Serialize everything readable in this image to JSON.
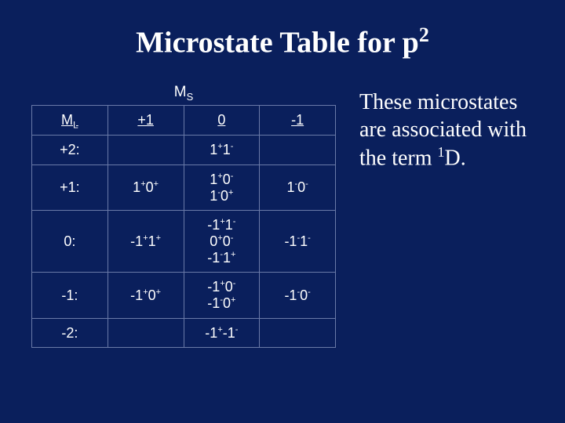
{
  "colors": {
    "background": "#0a1f5c",
    "text": "#ffffff",
    "border": "#6a7aa8"
  },
  "fonts": {
    "title_family": "Times New Roman",
    "title_size_pt": 38,
    "body_family": "Arial",
    "body_size_pt": 18,
    "sidetext_family": "Times New Roman",
    "sidetext_size_pt": 28
  },
  "title": {
    "prefix": "Microstate Table  for p",
    "sup": "2"
  },
  "ms_header": {
    "base": "M",
    "sub": "S"
  },
  "ml_header": {
    "base": "M",
    "sub": "L"
  },
  "col_headers": {
    "c1": "+1",
    "c2": "0",
    "c3": "-1"
  },
  "rows": {
    "r1": {
      "ml": "+2:",
      "c1": "",
      "c2": [
        {
          "base": "1",
          "sup": "+"
        },
        {
          "base": "1",
          "sup": "-"
        }
      ],
      "c3": ""
    },
    "r2": {
      "ml": "+1:",
      "c1": [
        {
          "base": "1",
          "sup": "+"
        },
        {
          "base": "0",
          "sup": "+"
        }
      ],
      "c2_line1": [
        {
          "base": "1",
          "sup": "+"
        },
        {
          "base": "0",
          "sup": "-"
        }
      ],
      "c2_line2": [
        {
          "base": "1",
          "sup": "-"
        },
        {
          "base": "0",
          "sup": "+"
        }
      ],
      "c3": [
        {
          "base": "1",
          "sup": "-"
        },
        {
          "base": "0",
          "sup": "-"
        }
      ]
    },
    "r3": {
      "ml": "0:",
      "c1": [
        {
          "base": "-1",
          "sup": "+"
        },
        {
          "base": "1",
          "sup": "+"
        }
      ],
      "c2_line1": [
        {
          "base": "-1",
          "sup": "+"
        },
        {
          "base": "1",
          "sup": "-"
        }
      ],
      "c2_line2": [
        {
          "base": "0",
          "sup": "+"
        },
        {
          "base": "0",
          "sup": "-"
        }
      ],
      "c2_line3": [
        {
          "base": "-1",
          "sup": "-"
        },
        {
          "base": "1",
          "sup": "+"
        }
      ],
      "c3": [
        {
          "base": "-1",
          "sup": "-"
        },
        {
          "base": "1",
          "sup": "-"
        }
      ]
    },
    "r4": {
      "ml": "-1:",
      "c1": [
        {
          "base": "-1",
          "sup": "+"
        },
        {
          "base": "0",
          "sup": "+"
        }
      ],
      "c2_line1": [
        {
          "base": "-1",
          "sup": "+"
        },
        {
          "base": "0",
          "sup": "-"
        }
      ],
      "c2_line2": [
        {
          "base": "-1",
          "sup": "-"
        },
        {
          "base": "0",
          "sup": "+"
        }
      ],
      "c3": [
        {
          "base": "-1",
          "sup": "-"
        },
        {
          "base": "0",
          "sup": "-"
        }
      ]
    },
    "r5": {
      "ml": "-2:",
      "c1": "",
      "c2": [
        {
          "base": "-1",
          "sup": "+"
        },
        {
          "base": "-1",
          "sup": "-"
        }
      ],
      "c3": ""
    }
  },
  "sidetext": {
    "prefix": "These microstates are associated with the term ",
    "term_sup": "1",
    "term_base": "D."
  }
}
